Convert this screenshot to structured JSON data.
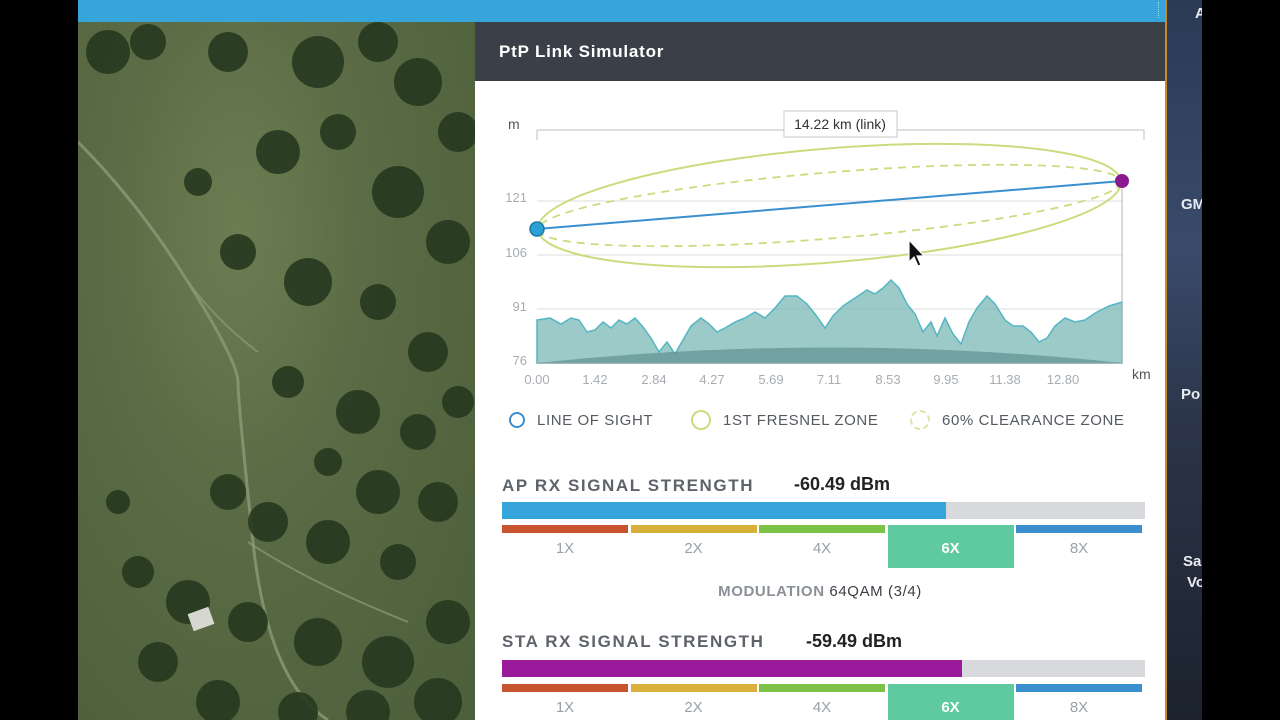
{
  "panel": {
    "title": "PtP Link Simulator"
  },
  "profile": {
    "unit_y": "m",
    "unit_x": "km",
    "distance_label": "14.22 km (link)",
    "y_ticks": [
      "121",
      "106",
      "91",
      "76"
    ],
    "x_ticks": [
      "0.00",
      "1.42",
      "2.84",
      "4.27",
      "5.69",
      "7.11",
      "8.53",
      "9.95",
      "11.38",
      "12.80"
    ],
    "colors": {
      "los": "#3a8fcf",
      "fresnel": "#c8dd7e",
      "terrain": "#7ab8b6",
      "ap_dot": "#2ea0d8",
      "sta_dot": "#8b1a8f"
    }
  },
  "legend": {
    "los": "LINE OF SIGHT",
    "fresnel": "1ST FRESNEL ZONE",
    "clearance": "60% CLEARANCE ZONE"
  },
  "ap_rx": {
    "label": "AP RX SIGNAL STRENGTH",
    "value": "-60.49 dBm",
    "fill_percent": 69,
    "color": "#36a5dc"
  },
  "sta_rx": {
    "label": "STA RX SIGNAL STRENGTH",
    "value": "-59.49 dBm",
    "fill_percent": 71.5,
    "color": "#9b1a9c"
  },
  "modulation_levels": [
    {
      "label": "1X",
      "color": "#c8532f"
    },
    {
      "label": "2X",
      "color": "#d8b13a"
    },
    {
      "label": "4X",
      "color": "#7cc247"
    },
    {
      "label": "6X",
      "color": "#5fcaa0"
    },
    {
      "label": "8X",
      "color": "#3a8fcf"
    }
  ],
  "active_level": "6X",
  "modulation": {
    "key": "MODULATION",
    "value": "64QAM (3/4)"
  },
  "right_edge_fragments": [
    "A",
    "GM",
    "Po",
    "Sa",
    "Vo"
  ]
}
